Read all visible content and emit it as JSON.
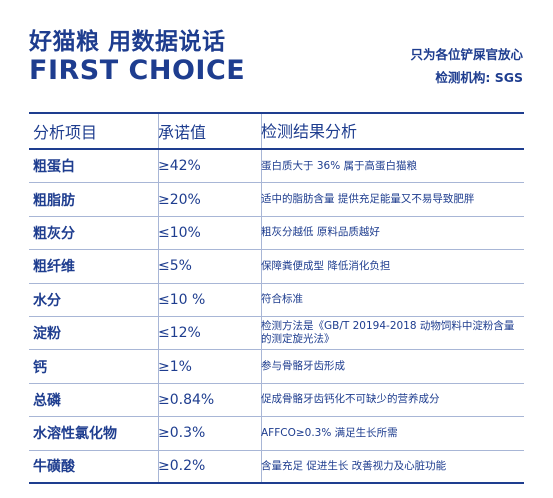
{
  "header": {
    "title_cn": "好猫粮 用数据说话",
    "title_en": "FIRST CHOICE",
    "subtitle_1": "只为各位铲屎官放心",
    "subtitle_2": "检测机构: SGS"
  },
  "table": {
    "columns": [
      "分析项目",
      "承诺值",
      "检测结果分析"
    ],
    "rows": [
      {
        "item": "粗蛋白",
        "value": "≥42%",
        "analysis": "蛋白质大于 36% 属于高蛋白猫粮"
      },
      {
        "item": "粗脂肪",
        "value": "≥20%",
        "analysis": "适中的脂肪含量 提供充足能量又不易导致肥胖"
      },
      {
        "item": "粗灰分",
        "value": "≤10%",
        "analysis": "粗灰分越低 原料品质越好"
      },
      {
        "item": "粗纤维",
        "value": "≤5%",
        "analysis": "保障粪便成型 降低消化负担"
      },
      {
        "item": "水分",
        "value": "≤10 %",
        "analysis": "符合标准"
      },
      {
        "item": "淀粉",
        "value": "≤12%",
        "analysis": "检测方法是《GB/T 20194-2018 动物饲料中淀粉含量的测定旋光法》"
      },
      {
        "item": "钙",
        "value": "≥1%",
        "analysis": "参与骨骼牙齿形成"
      },
      {
        "item": "总磷",
        "value": "≥0.84%",
        "analysis": "促成骨骼牙齿钙化不可缺少的营养成分"
      },
      {
        "item": "水溶性氯化物",
        "value": "≥0.3%",
        "analysis": "AFFCO≥0.3% 满足生长所需"
      },
      {
        "item": "牛磺酸",
        "value": "≥0.2%",
        "analysis": "含量充足 促进生长 改善视力及心脏功能"
      }
    ]
  }
}
